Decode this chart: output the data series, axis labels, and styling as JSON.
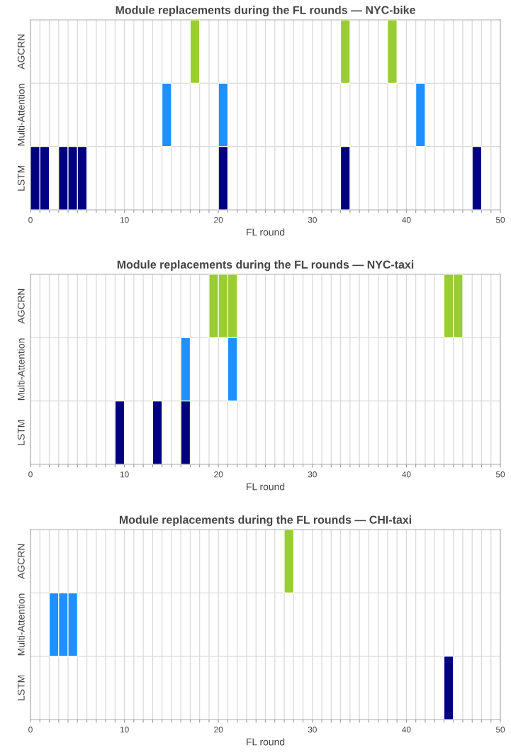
{
  "chart_data": [
    {
      "type": "bar",
      "orientation": "horizontal",
      "title": "Module replacements during the FL rounds — NYC-bike",
      "xlabel": "FL round",
      "xlim": [
        0,
        50
      ],
      "grid": true,
      "categories": [
        "AGCRN",
        "Multi-Attention",
        "LSTM"
      ],
      "xticks": [
        0,
        {
          "value": 1,
          "label": null
        },
        {
          "value": 2,
          "label": null
        },
        {
          "value": 3,
          "label": null
        },
        {
          "value": 4,
          "label": null
        },
        {
          "value": 5,
          "label": null
        },
        {
          "value": 6,
          "label": null
        },
        {
          "value": 7,
          "label": null
        },
        {
          "value": 8,
          "label": null
        },
        {
          "value": 9,
          "label": null
        },
        10,
        {
          "value": 11,
          "label": null
        },
        {
          "value": 12,
          "label": null
        },
        {
          "value": 13,
          "label": null
        },
        {
          "value": 14,
          "label": null
        },
        {
          "value": 15,
          "label": null
        },
        {
          "value": 16,
          "label": null
        },
        {
          "value": 17,
          "label": null
        },
        {
          "value": 18,
          "label": null
        },
        {
          "value": 19,
          "label": null
        },
        20,
        {
          "value": 21,
          "label": null
        },
        {
          "value": 22,
          "label": null
        },
        {
          "value": 23,
          "label": null
        },
        {
          "value": 24,
          "label": null
        },
        {
          "value": 25,
          "label": null
        },
        {
          "value": 26,
          "label": null
        },
        {
          "value": 27,
          "label": null
        },
        {
          "value": 28,
          "label": null
        },
        {
          "value": 29,
          "label": null
        },
        30,
        {
          "value": 31,
          "label": null
        },
        {
          "value": 32,
          "label": null
        },
        {
          "value": 33,
          "label": null
        },
        {
          "value": 34,
          "label": null
        },
        {
          "value": 35,
          "label": null
        },
        {
          "value": 36,
          "label": null
        },
        {
          "value": 37,
          "label": null
        },
        {
          "value": 38,
          "label": null
        },
        {
          "value": 39,
          "label": null
        },
        40,
        {
          "value": 41,
          "label": null
        },
        {
          "value": 42,
          "label": null
        },
        {
          "value": 43,
          "label": null
        },
        {
          "value": 44,
          "label": null
        },
        {
          "value": 45,
          "label": null
        },
        {
          "value": 46,
          "label": null
        },
        {
          "value": 47,
          "label": null
        },
        {
          "value": 48,
          "label": null
        },
        {
          "value": 49,
          "label": null
        },
        50
      ],
      "series": [
        {
          "colors": [
            "#9acd32",
            "#1e90ff",
            "#000080"
          ],
          "base": [
            17,
            14,
            0
          ],
          "values": [
            1,
            1,
            1
          ]
        },
        {
          "colors": [
            "#9acd32",
            "#1e90ff",
            "#000080"
          ],
          "base": [
            33,
            20,
            1
          ],
          "values": [
            1,
            1,
            1
          ]
        },
        {
          "colors": [
            "#9acd32",
            "#1e90ff",
            "#000080"
          ],
          "base": [
            38,
            41,
            3
          ],
          "values": [
            1,
            1,
            1
          ]
        },
        {
          "colors": [
            null,
            null,
            "#000080"
          ],
          "base": [
            null,
            null,
            4
          ],
          "values": [
            null,
            null,
            1
          ]
        },
        {
          "colors": [
            null,
            null,
            "#000080"
          ],
          "base": [
            null,
            null,
            5
          ],
          "values": [
            null,
            null,
            1
          ]
        },
        {
          "colors": [
            null,
            null,
            "#000080"
          ],
          "base": [
            null,
            null,
            20
          ],
          "values": [
            null,
            null,
            1
          ]
        },
        {
          "colors": [
            null,
            null,
            "#000080"
          ],
          "base": [
            null,
            null,
            33
          ],
          "values": [
            null,
            null,
            1
          ]
        },
        {
          "colors": [
            null,
            null,
            "#000080"
          ],
          "base": [
            null,
            null,
            47
          ],
          "values": [
            null,
            null,
            1
          ]
        }
      ]
    },
    {
      "type": "bar",
      "orientation": "horizontal",
      "title": "Module replacements during the FL rounds — NYC-taxi",
      "xlabel": "FL round",
      "xlim": [
        0,
        50
      ],
      "grid": true,
      "categories": [
        "AGCRN",
        "Multi-Attention",
        "LSTM"
      ],
      "xticks": [
        0,
        {
          "value": 1,
          "label": null
        },
        {
          "value": 2,
          "label": null
        },
        {
          "value": 3,
          "label": null
        },
        {
          "value": 4,
          "label": null
        },
        {
          "value": 5,
          "label": null
        },
        {
          "value": 6,
          "label": null
        },
        {
          "value": 7,
          "label": null
        },
        {
          "value": 8,
          "label": null
        },
        {
          "value": 9,
          "label": null
        },
        10,
        {
          "value": 11,
          "label": null
        },
        {
          "value": 12,
          "label": null
        },
        {
          "value": 13,
          "label": null
        },
        {
          "value": 14,
          "label": null
        },
        {
          "value": 15,
          "label": null
        },
        {
          "value": 16,
          "label": null
        },
        {
          "value": 17,
          "label": null
        },
        {
          "value": 18,
          "label": null
        },
        {
          "value": 19,
          "label": null
        },
        20,
        {
          "value": 21,
          "label": null
        },
        {
          "value": 22,
          "label": null
        },
        {
          "value": 23,
          "label": null
        },
        {
          "value": 24,
          "label": null
        },
        {
          "value": 25,
          "label": null
        },
        {
          "value": 26,
          "label": null
        },
        {
          "value": 27,
          "label": null
        },
        {
          "value": 28,
          "label": null
        },
        {
          "value": 29,
          "label": null
        },
        30,
        {
          "value": 31,
          "label": null
        },
        {
          "value": 32,
          "label": null
        },
        {
          "value": 33,
          "label": null
        },
        {
          "value": 34,
          "label": null
        },
        {
          "value": 35,
          "label": null
        },
        {
          "value": 36,
          "label": null
        },
        {
          "value": 37,
          "label": null
        },
        {
          "value": 38,
          "label": null
        },
        {
          "value": 39,
          "label": null
        },
        40,
        {
          "value": 41,
          "label": null
        },
        {
          "value": 42,
          "label": null
        },
        {
          "value": 43,
          "label": null
        },
        {
          "value": 44,
          "label": null
        },
        {
          "value": 45,
          "label": null
        },
        {
          "value": 46,
          "label": null
        },
        {
          "value": 47,
          "label": null
        },
        {
          "value": 48,
          "label": null
        },
        {
          "value": 49,
          "label": null
        },
        50
      ],
      "series": [
        {
          "colors": [
            "#9acd32",
            "#1e90ff",
            "#000080"
          ],
          "base": [
            19,
            16,
            9
          ],
          "values": [
            1,
            1,
            1
          ]
        },
        {
          "colors": [
            "#9acd32",
            "#1e90ff",
            "#000080"
          ],
          "base": [
            20,
            21,
            13
          ],
          "values": [
            1,
            1,
            1
          ]
        },
        {
          "colors": [
            "#9acd32",
            null,
            "#000080"
          ],
          "base": [
            21,
            null,
            16
          ],
          "values": [
            1,
            null,
            1
          ]
        },
        {
          "colors": [
            "#9acd32",
            null,
            null
          ],
          "base": [
            44,
            null,
            null
          ],
          "values": [
            1,
            null,
            null
          ]
        },
        {
          "colors": [
            "#9acd32",
            null,
            null
          ],
          "base": [
            45,
            null,
            null
          ],
          "values": [
            1,
            null,
            null
          ]
        }
      ]
    },
    {
      "type": "bar",
      "orientation": "horizontal",
      "title": "Module replacements during the FL rounds — CHI-taxi",
      "xlabel": "FL round",
      "xlim": [
        0,
        50
      ],
      "grid": true,
      "categories": [
        "AGCRN",
        "Multi-Attention",
        "LSTM"
      ],
      "xticks": [
        0,
        {
          "value": 1,
          "label": null
        },
        {
          "value": 2,
          "label": null
        },
        {
          "value": 3,
          "label": null
        },
        {
          "value": 4,
          "label": null
        },
        {
          "value": 5,
          "label": null
        },
        {
          "value": 6,
          "label": null
        },
        {
          "value": 7,
          "label": null
        },
        {
          "value": 8,
          "label": null
        },
        {
          "value": 9,
          "label": null
        },
        10,
        {
          "value": 11,
          "label": null
        },
        {
          "value": 12,
          "label": null
        },
        {
          "value": 13,
          "label": null
        },
        {
          "value": 14,
          "label": null
        },
        {
          "value": 15,
          "label": null
        },
        {
          "value": 16,
          "label": null
        },
        {
          "value": 17,
          "label": null
        },
        {
          "value": 18,
          "label": null
        },
        {
          "value": 19,
          "label": null
        },
        20,
        {
          "value": 21,
          "label": null
        },
        {
          "value": 22,
          "label": null
        },
        {
          "value": 23,
          "label": null
        },
        {
          "value": 24,
          "label": null
        },
        {
          "value": 25,
          "label": null
        },
        {
          "value": 26,
          "label": null
        },
        {
          "value": 27,
          "label": null
        },
        {
          "value": 28,
          "label": null
        },
        {
          "value": 29,
          "label": null
        },
        30,
        {
          "value": 31,
          "label": null
        },
        {
          "value": 32,
          "label": null
        },
        {
          "value": 33,
          "label": null
        },
        {
          "value": 34,
          "label": null
        },
        {
          "value": 35,
          "label": null
        },
        {
          "value": 36,
          "label": null
        },
        {
          "value": 37,
          "label": null
        },
        {
          "value": 38,
          "label": null
        },
        {
          "value": 39,
          "label": null
        },
        40,
        {
          "value": 41,
          "label": null
        },
        {
          "value": 42,
          "label": null
        },
        {
          "value": 43,
          "label": null
        },
        {
          "value": 44,
          "label": null
        },
        {
          "value": 45,
          "label": null
        },
        {
          "value": 46,
          "label": null
        },
        {
          "value": 47,
          "label": null
        },
        {
          "value": 48,
          "label": null
        },
        {
          "value": 49,
          "label": null
        },
        50
      ],
      "series": [
        {
          "colors": [
            "#9acd32",
            "#1e90ff",
            "#000080"
          ],
          "base": [
            27,
            2,
            44
          ],
          "values": [
            1,
            1,
            1
          ]
        },
        {
          "colors": [
            null,
            "#1e90ff",
            null
          ],
          "base": [
            null,
            3,
            null
          ],
          "values": [
            null,
            1,
            null
          ]
        },
        {
          "colors": [
            null,
            "#1e90ff",
            null
          ],
          "base": [
            null,
            4,
            null
          ],
          "values": [
            null,
            1,
            null
          ]
        }
      ]
    }
  ]
}
